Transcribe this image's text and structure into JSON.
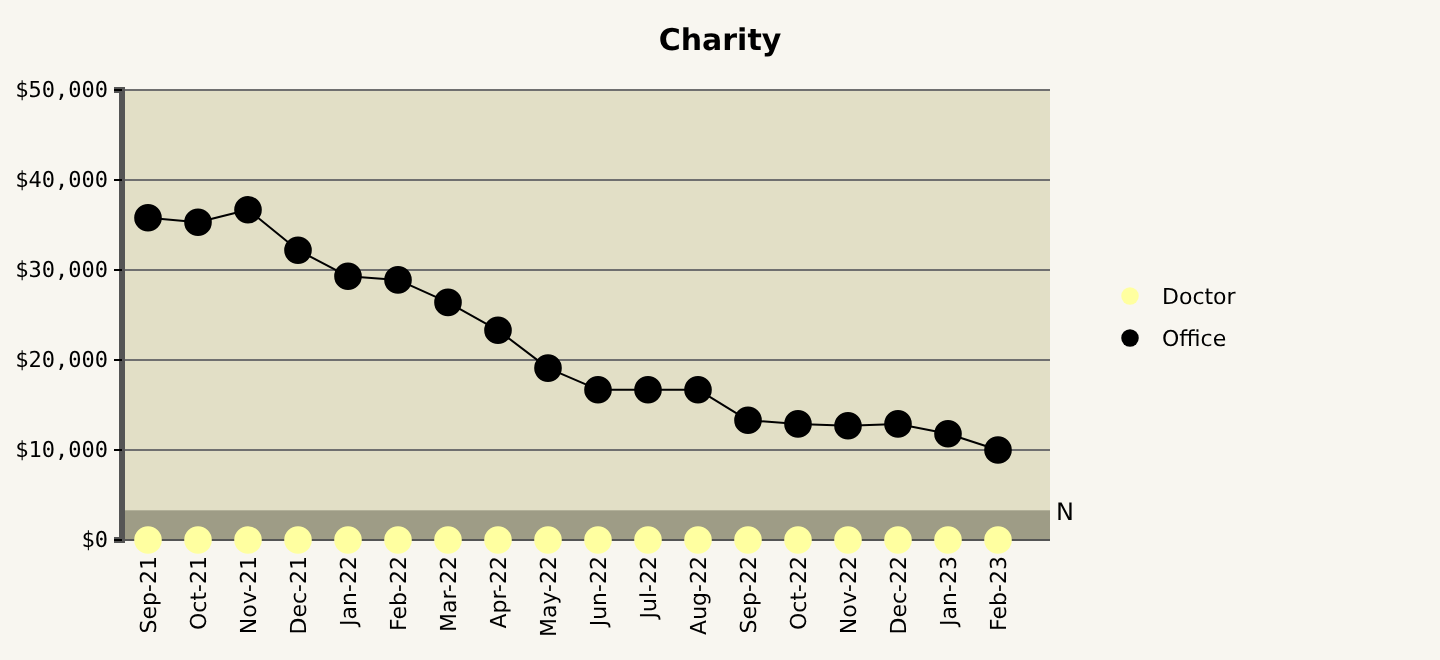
{
  "chart_data": {
    "type": "line",
    "title": "Charity",
    "categories": [
      "Sep-21",
      "Oct-21",
      "Nov-21",
      "Dec-21",
      "Jan-22",
      "Feb-22",
      "Mar-22",
      "Apr-22",
      "May-22",
      "Jun-22",
      "Jul-22",
      "Aug-22",
      "Sep-22",
      "Oct-22",
      "Nov-22",
      "Dec-22",
      "Jan-23",
      "Feb-23"
    ],
    "series": [
      {
        "name": "Doctor",
        "color": "#ffffa0",
        "type": "scatter",
        "values": [
          0,
          0,
          0,
          0,
          0,
          0,
          0,
          0,
          0,
          0,
          0,
          0,
          0,
          0,
          0,
          0,
          0,
          0
        ]
      },
      {
        "name": "Office",
        "color": "#000000",
        "values": [
          35800,
          35300,
          36700,
          32200,
          29300,
          28900,
          26400,
          23300,
          19100,
          16700,
          16700,
          16700,
          13300,
          12900,
          12700,
          12900,
          11800,
          10000
        ]
      }
    ],
    "ylim": [
      0,
      50000
    ],
    "yticks": [
      {
        "value": 0,
        "label": "$0"
      },
      {
        "value": 10000,
        "label": "$10,000"
      },
      {
        "value": 20000,
        "label": "$20,000"
      },
      {
        "value": 30000,
        "label": "$30,000"
      },
      {
        "value": 40000,
        "label": "$40,000"
      },
      {
        "value": 50000,
        "label": "$50,000"
      }
    ],
    "grid": "y",
    "legend": "right",
    "marker": "circle",
    "bands": [
      {
        "axis": "y",
        "from": 0,
        "to": 3300,
        "color": "#9e9c86"
      }
    ],
    "annotations": [
      "N"
    ]
  }
}
